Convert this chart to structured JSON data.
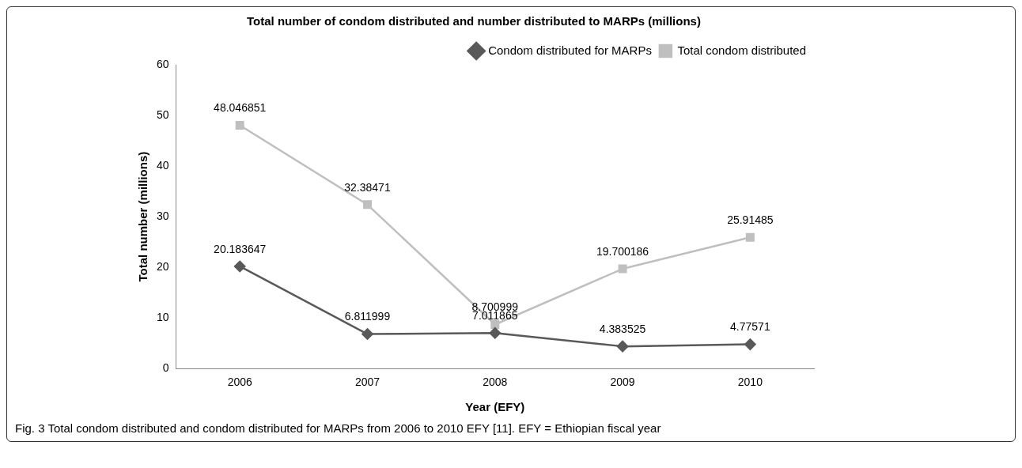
{
  "chart_data": {
    "type": "line",
    "title": "Total number of condom distributed and number distributed to MARPs (millions)",
    "xlabel": "Year (EFY)",
    "ylabel": "Total number (millions)",
    "categories": [
      "2006",
      "2007",
      "2008",
      "2009",
      "2010"
    ],
    "series": [
      {
        "name": "Condom distributed for MARPs",
        "color": "#595959",
        "marker": "diamond",
        "values": [
          20.183647,
          6.811999,
          7.011865,
          4.383525,
          4.77571
        ]
      },
      {
        "name": "Total condom distributed",
        "color": "#bfbfbf",
        "marker": "square",
        "values": [
          48.046851,
          32.38471,
          8.700999,
          19.700186,
          25.91485
        ]
      }
    ],
    "ylim": [
      0,
      60
    ],
    "yticks": [
      0,
      10,
      20,
      30,
      40,
      50,
      60
    ],
    "grid": false,
    "legend": "top right",
    "data_labels": true,
    "line_style": "solid",
    "annotations": [
      "Fig. 3 Total condom distributed and condom distributed for MARPs from 2006 to 2010 EFY [11]. EFY = Ethiopian fiscal year"
    ]
  }
}
